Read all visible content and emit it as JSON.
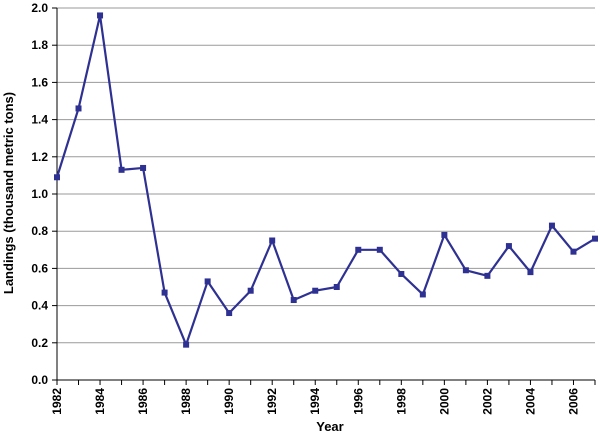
{
  "chart_data": {
    "type": "line",
    "title": "",
    "xlabel": "Year",
    "ylabel": "Landings (thousand metric tons)",
    "xlim": [
      1982,
      2007
    ],
    "ylim": [
      0,
      2.0
    ],
    "x_ticks": [
      "1982",
      "1984",
      "1986",
      "1988",
      "1990",
      "1992",
      "1994",
      "1996",
      "1998",
      "2000",
      "2002",
      "2004",
      "2006"
    ],
    "y_ticks": [
      "0.0",
      "0.2",
      "0.4",
      "0.6",
      "0.8",
      "1.0",
      "1.2",
      "1.4",
      "1.6",
      "1.8",
      "2.0"
    ],
    "grid": true,
    "legend": "none",
    "series": [
      {
        "color": "#2E3192",
        "x": [
          1982,
          1983,
          1984,
          1985,
          1986,
          1987,
          1988,
          1989,
          1990,
          1991,
          1992,
          1993,
          1994,
          1995,
          1996,
          1997,
          1998,
          1999,
          2000,
          2001,
          2002,
          2003,
          2004,
          2005,
          2006,
          2007
        ],
        "values": [
          1.09,
          1.46,
          1.96,
          1.13,
          1.14,
          0.47,
          0.19,
          0.53,
          0.36,
          0.48,
          0.75,
          0.43,
          0.48,
          0.5,
          0.7,
          0.7,
          0.57,
          0.46,
          0.78,
          0.59,
          0.56,
          0.72,
          0.58,
          0.83,
          0.69,
          0.76
        ]
      }
    ]
  }
}
